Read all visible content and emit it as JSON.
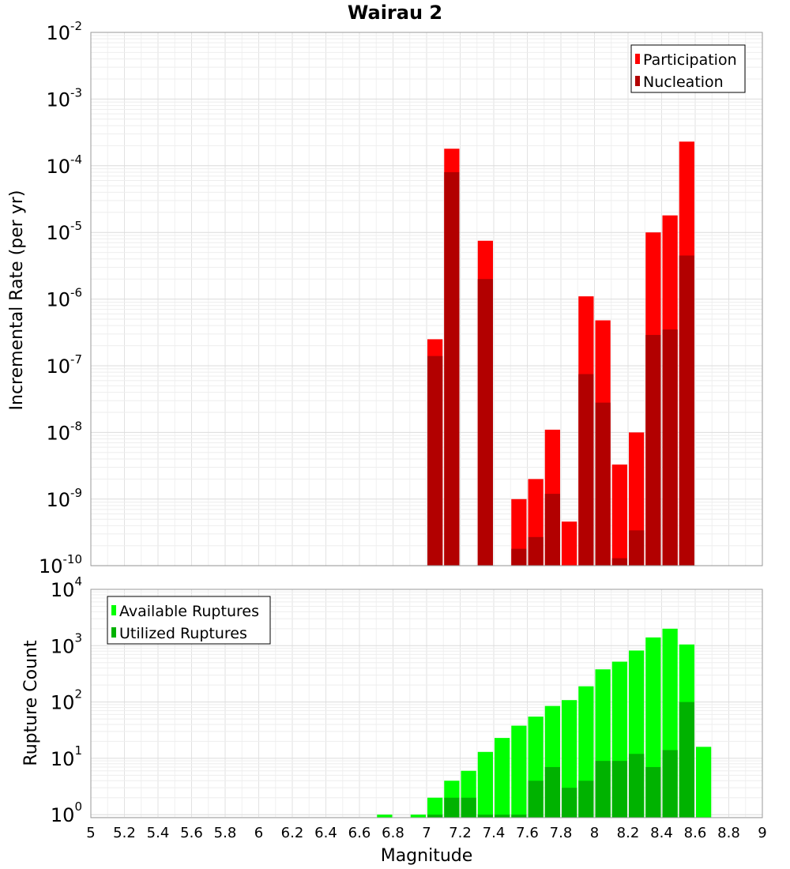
{
  "chart_data": [
    {
      "type": "bar",
      "title": "Wairau 2",
      "xlabel": "",
      "ylabel": "Incremental Rate (per yr)",
      "yscale": "log",
      "ylim": [
        1e-10,
        0.01
      ],
      "xlim": [
        5,
        9
      ],
      "ytick_labels": [
        {
          "base": "10",
          "exp": "-2"
        },
        {
          "base": "10",
          "exp": "-3"
        },
        {
          "base": "10",
          "exp": "-4"
        },
        {
          "base": "10",
          "exp": "-5"
        },
        {
          "base": "10",
          "exp": "-6"
        },
        {
          "base": "10",
          "exp": "-7"
        },
        {
          "base": "10",
          "exp": "-8"
        },
        {
          "base": "10",
          "exp": "-9"
        },
        {
          "base": "10",
          "exp": "-10"
        }
      ],
      "legend": "top-right",
      "grid": true,
      "x": [
        7.05,
        7.15,
        7.35,
        7.55,
        7.65,
        7.75,
        7.85,
        7.95,
        8.05,
        8.15,
        8.25,
        8.35,
        8.45,
        8.55
      ],
      "series": [
        {
          "name": "Participation",
          "color": "#ff0000",
          "values": [
            2.5e-07,
            0.00018,
            7.5e-06,
            1e-09,
            2e-09,
            1.1e-08,
            4.6e-10,
            1.1e-06,
            4.8e-07,
            3.3e-09,
            1e-08,
            1e-05,
            1.8e-05,
            0.00023
          ]
        },
        {
          "name": "Nucleation",
          "color": "#b20000",
          "values": [
            1.4e-07,
            8e-05,
            2e-06,
            1.8e-10,
            2.7e-10,
            1.2e-09,
            null,
            7.5e-08,
            2.8e-08,
            1.3e-10,
            3.4e-10,
            2.9e-07,
            3.5e-07,
            4.5e-06
          ]
        }
      ]
    },
    {
      "type": "bar",
      "title": "",
      "xlabel": "Magnitude",
      "ylabel": "Rupture Count",
      "yscale": "log",
      "ylim": [
        0.8,
        10000
      ],
      "xlim": [
        5,
        9
      ],
      "xticks": [
        "5",
        "5.2",
        "5.4",
        "5.6",
        "5.8",
        "6",
        "6.2",
        "6.4",
        "6.6",
        "6.8",
        "7",
        "7.2",
        "7.4",
        "7.6",
        "7.8",
        "8",
        "8.2",
        "8.4",
        "8.6",
        "8.8",
        "9"
      ],
      "ytick_labels": [
        {
          "base": "10",
          "exp": "4"
        },
        {
          "base": "10",
          "exp": "3"
        },
        {
          "base": "10",
          "exp": "2"
        },
        {
          "base": "10",
          "exp": "1"
        },
        {
          "base": "10",
          "exp": "0"
        }
      ],
      "legend": "top-left",
      "grid": true,
      "x": [
        6.75,
        6.95,
        7.05,
        7.15,
        7.25,
        7.35,
        7.45,
        7.55,
        7.65,
        7.75,
        7.85,
        7.95,
        8.05,
        8.15,
        8.25,
        8.35,
        8.45,
        8.55,
        8.65
      ],
      "series": [
        {
          "name": "Available Ruptures",
          "color": "#00ff00",
          "values": [
            1,
            1,
            2,
            4,
            6,
            13,
            23,
            38,
            55,
            85,
            108,
            190,
            380,
            520,
            820,
            1400,
            2000,
            1050,
            16
          ]
        },
        {
          "name": "Utilized Ruptures",
          "color": "#00b200",
          "values": [
            null,
            null,
            1,
            2,
            2,
            1,
            1,
            1,
            4,
            7,
            3,
            4,
            9,
            9,
            12,
            7,
            14,
            100,
            null
          ]
        }
      ]
    }
  ]
}
